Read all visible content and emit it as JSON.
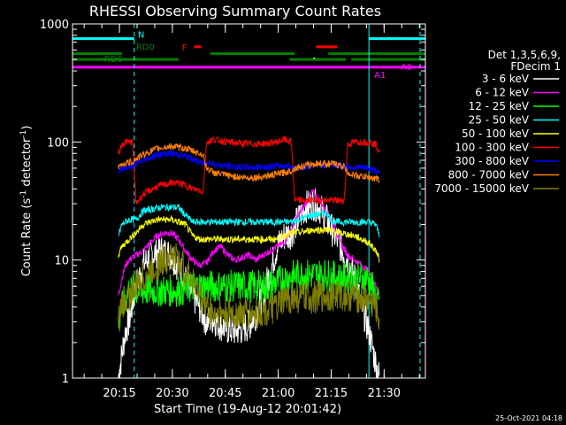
{
  "chart_data": {
    "type": "line",
    "title": "RHESSI Observing Summary Count Rates",
    "xlabel": "Start Time (19-Aug-12 20:01:42)",
    "ylabel_main": "Count Rate (s",
    "ylabel_sup1": "-1",
    "ylabel_mid": " detector",
    "ylabel_sup2": "-1",
    "ylabel_end": ")",
    "y_scale": "log",
    "ylim": [
      1,
      1000
    ],
    "xlim_minutes": [
      0,
      100
    ],
    "x_start_minutes_of_day": 1201.7,
    "y_ticks": [
      {
        "value": 1,
        "label": "1"
      },
      {
        "value": 10,
        "label": "10"
      },
      {
        "value": 100,
        "label": "100"
      },
      {
        "value": 1000,
        "label": "1000"
      }
    ],
    "x_ticks": [
      {
        "minute": 13.3,
        "label": "20:15"
      },
      {
        "minute": 28.3,
        "label": "20:30"
      },
      {
        "minute": 43.3,
        "label": "20:45"
      },
      {
        "minute": 58.3,
        "label": "21:00"
      },
      {
        "minute": 73.3,
        "label": "21:15"
      },
      {
        "minute": 88.3,
        "label": "21:30"
      }
    ],
    "legend": {
      "position": "right",
      "header": [
        "Det 1,3,5,6,9,",
        "FDecim 1"
      ],
      "entries": [
        {
          "label": "3 - 6 keV",
          "color": "#ffffff"
        },
        {
          "label": "6 - 12 keV",
          "color": "#ff00ff"
        },
        {
          "label": "12 - 25 keV",
          "color": "#00ff00"
        },
        {
          "label": "25 - 50 keV",
          "color": "#00ffff"
        },
        {
          "label": "50 - 100 keV",
          "color": "#ffff00"
        },
        {
          "label": "100 - 300 keV",
          "color": "#ff0000"
        },
        {
          "label": "300 - 800 keV",
          "color": "#0000ff"
        },
        {
          "label": "800 - 7000 keV",
          "color": "#ff8000"
        },
        {
          "label": "7000 - 15000 keV",
          "color": "#808000"
        }
      ]
    },
    "flag_bars": [
      {
        "label": "N",
        "color": "#00ffff",
        "y": 750,
        "segments": [
          [
            0,
            17.5
          ],
          [
            84,
            100
          ]
        ]
      },
      {
        "label": "F",
        "color": "#ff0000",
        "y": 640,
        "segments": [
          [
            34.5,
            36.5
          ],
          [
            69,
            75
          ]
        ]
      },
      {
        "label": "RD0",
        "color": "#008000",
        "y": 560,
        "segments": [
          [
            0,
            14
          ],
          [
            39,
            63
          ],
          [
            72.5,
            100
          ]
        ]
      },
      {
        "label": "RD6",
        "color": "#008000",
        "y": 500,
        "segments": [
          [
            0,
            30
          ],
          [
            61.5,
            77.5
          ],
          [
            79,
            100
          ]
        ]
      },
      {
        "label": "A1",
        "color": "#ff00ff",
        "y": 430,
        "segments": [
          [
            0,
            100
          ]
        ]
      }
    ],
    "flag_labels_extra": [
      {
        "text": "A0",
        "color": "#ff00ff"
      }
    ],
    "day_night": {
      "solid_lines": [
        0,
        84
      ],
      "dashed_lines": [
        17.5,
        98.5
      ],
      "color": "#00ffff"
    },
    "data_interval": [
      13.0,
      87.0
    ],
    "series": [
      {
        "name": "3 - 6 keV",
        "color": "#ffffff",
        "points": [
          [
            13,
            1.0
          ],
          [
            14,
            1.6
          ],
          [
            15,
            2.5
          ],
          [
            16,
            3.0
          ],
          [
            18,
            6
          ],
          [
            20,
            9
          ],
          [
            22,
            11
          ],
          [
            25,
            12
          ],
          [
            28,
            11
          ],
          [
            31,
            8
          ],
          [
            34,
            5
          ],
          [
            36,
            4
          ],
          [
            38,
            3.0
          ],
          [
            40,
            3.2
          ],
          [
            42,
            2.8
          ],
          [
            44,
            2.6
          ],
          [
            46,
            2.5
          ],
          [
            48,
            2.6
          ],
          [
            50,
            2.8
          ],
          [
            52,
            3.5
          ],
          [
            54,
            5
          ],
          [
            56,
            8
          ],
          [
            58,
            13
          ],
          [
            60,
            16
          ],
          [
            62,
            17
          ],
          [
            64,
            22
          ],
          [
            66,
            28
          ],
          [
            68,
            30
          ],
          [
            70,
            28
          ],
          [
            72,
            22
          ],
          [
            74,
            17
          ],
          [
            76,
            13
          ],
          [
            78,
            10
          ],
          [
            80,
            7
          ],
          [
            82,
            4
          ],
          [
            84,
            2.5
          ],
          [
            85,
            1.8
          ],
          [
            86,
            1.3
          ],
          [
            87,
            1.0
          ]
        ]
      },
      {
        "name": "6 - 12 keV",
        "color": "#ff00ff",
        "points": [
          [
            13,
            5
          ],
          [
            14,
            7
          ],
          [
            15,
            9
          ],
          [
            16,
            10
          ],
          [
            18,
            11
          ],
          [
            20,
            12
          ],
          [
            22,
            14
          ],
          [
            24,
            16
          ],
          [
            26,
            17
          ],
          [
            28,
            17
          ],
          [
            30,
            15
          ],
          [
            32,
            12
          ],
          [
            34,
            10
          ],
          [
            36,
            9
          ],
          [
            38,
            9.5
          ],
          [
            40,
            12
          ],
          [
            42,
            13
          ],
          [
            44,
            11
          ],
          [
            46,
            10
          ],
          [
            48,
            10.5
          ],
          [
            50,
            11
          ],
          [
            52,
            10
          ],
          [
            54,
            11
          ],
          [
            56,
            12
          ],
          [
            58,
            13
          ],
          [
            60,
            14
          ],
          [
            62,
            18
          ],
          [
            64,
            24
          ],
          [
            66,
            30
          ],
          [
            68,
            38
          ],
          [
            70,
            32
          ],
          [
            72,
            26
          ],
          [
            74,
            20
          ],
          [
            76,
            14
          ],
          [
            78,
            11
          ],
          [
            80,
            10
          ],
          [
            82,
            9
          ],
          [
            84,
            8
          ],
          [
            86,
            6
          ],
          [
            87,
            5
          ]
        ]
      },
      {
        "name": "12 - 25 keV",
        "color": "#00ff00",
        "points": [
          [
            13,
            3
          ],
          [
            14,
            4
          ],
          [
            16,
            5.5
          ],
          [
            20,
            5.5
          ],
          [
            25,
            5.5
          ],
          [
            30,
            5.5
          ],
          [
            35,
            6
          ],
          [
            40,
            6
          ],
          [
            45,
            6
          ],
          [
            50,
            6
          ],
          [
            55,
            6
          ],
          [
            58,
            6.5
          ],
          [
            60,
            7
          ],
          [
            64,
            7.5
          ],
          [
            68,
            7.5
          ],
          [
            72,
            7.5
          ],
          [
            76,
            7
          ],
          [
            80,
            7
          ],
          [
            84,
            7
          ],
          [
            87,
            4
          ]
        ]
      },
      {
        "name": "25 - 50 keV",
        "color": "#00ffff",
        "points": [
          [
            13,
            16
          ],
          [
            14,
            20
          ],
          [
            16,
            22
          ],
          [
            18,
            22
          ],
          [
            20,
            26
          ],
          [
            25,
            28
          ],
          [
            30,
            28
          ],
          [
            32,
            24
          ],
          [
            34,
            21
          ],
          [
            40,
            21
          ],
          [
            45,
            21
          ],
          [
            50,
            21
          ],
          [
            55,
            21
          ],
          [
            58,
            21
          ],
          [
            60,
            21
          ],
          [
            62,
            21
          ],
          [
            64,
            22
          ],
          [
            68,
            24
          ],
          [
            72,
            25
          ],
          [
            74,
            21
          ],
          [
            78,
            21
          ],
          [
            82,
            21
          ],
          [
            84,
            21
          ],
          [
            86,
            20
          ],
          [
            87,
            16
          ]
        ]
      },
      {
        "name": "50 - 100 keV",
        "color": "#ffff00",
        "points": [
          [
            13,
            11
          ],
          [
            14,
            13
          ],
          [
            16,
            15
          ],
          [
            18,
            17
          ],
          [
            20,
            20
          ],
          [
            24,
            22
          ],
          [
            28,
            22
          ],
          [
            32,
            20
          ],
          [
            34,
            16
          ],
          [
            36,
            15
          ],
          [
            40,
            15
          ],
          [
            45,
            15
          ],
          [
            50,
            15
          ],
          [
            55,
            15
          ],
          [
            58,
            15
          ],
          [
            60,
            16
          ],
          [
            62,
            17
          ],
          [
            64,
            17
          ],
          [
            68,
            18
          ],
          [
            72,
            18
          ],
          [
            76,
            17
          ],
          [
            80,
            16
          ],
          [
            84,
            14
          ],
          [
            86,
            12
          ],
          [
            87,
            10
          ]
        ]
      },
      {
        "name": "100 - 300 keV",
        "color": "#ff0000",
        "points": [
          [
            13,
            80
          ],
          [
            14,
            95
          ],
          [
            15,
            100
          ],
          [
            17,
            100
          ],
          [
            18,
            30
          ],
          [
            20,
            36
          ],
          [
            24,
            42
          ],
          [
            28,
            45
          ],
          [
            30,
            45
          ],
          [
            32,
            43
          ],
          [
            34,
            40
          ],
          [
            36,
            39
          ],
          [
            37,
            38
          ],
          [
            38,
            100
          ],
          [
            40,
            105
          ],
          [
            44,
            100
          ],
          [
            48,
            97
          ],
          [
            52,
            96
          ],
          [
            56,
            98
          ],
          [
            58,
            100
          ],
          [
            60,
            105
          ],
          [
            62,
            100
          ],
          [
            63,
            32
          ],
          [
            66,
            32
          ],
          [
            70,
            32
          ],
          [
            74,
            32
          ],
          [
            77,
            32
          ],
          [
            78,
            95
          ],
          [
            80,
            100
          ],
          [
            84,
            100
          ],
          [
            86,
            95
          ],
          [
            87,
            80
          ]
        ]
      },
      {
        "name": "300 - 800 keV",
        "color": "#0000ff",
        "points": [
          [
            13,
            55
          ],
          [
            14,
            60
          ],
          [
            17,
            62
          ],
          [
            18,
            65
          ],
          [
            20,
            70
          ],
          [
            24,
            78
          ],
          [
            28,
            80
          ],
          [
            32,
            76
          ],
          [
            35,
            70
          ],
          [
            37,
            65
          ],
          [
            38,
            68
          ],
          [
            40,
            65
          ],
          [
            44,
            62
          ],
          [
            48,
            61
          ],
          [
            52,
            61
          ],
          [
            56,
            62
          ],
          [
            60,
            63
          ],
          [
            62,
            62
          ],
          [
            63,
            60
          ],
          [
            66,
            62
          ],
          [
            70,
            64
          ],
          [
            74,
            64
          ],
          [
            77,
            62
          ],
          [
            78,
            62
          ],
          [
            80,
            61
          ],
          [
            84,
            60
          ],
          [
            87,
            55
          ]
        ]
      },
      {
        "name": "800 - 7000 keV",
        "color": "#ff8000",
        "points": [
          [
            13,
            60
          ],
          [
            14,
            65
          ],
          [
            17,
            68
          ],
          [
            18,
            72
          ],
          [
            20,
            78
          ],
          [
            24,
            88
          ],
          [
            28,
            92
          ],
          [
            32,
            88
          ],
          [
            35,
            82
          ],
          [
            37,
            78
          ],
          [
            38,
            60
          ],
          [
            40,
            55
          ],
          [
            44,
            52
          ],
          [
            48,
            50
          ],
          [
            52,
            50
          ],
          [
            56,
            52
          ],
          [
            60,
            55
          ],
          [
            62,
            57
          ],
          [
            63,
            60
          ],
          [
            66,
            63
          ],
          [
            70,
            66
          ],
          [
            74,
            65
          ],
          [
            77,
            62
          ],
          [
            78,
            55
          ],
          [
            80,
            52
          ],
          [
            84,
            50
          ],
          [
            87,
            48
          ]
        ]
      },
      {
        "name": "7000 - 15000 keV",
        "color": "#808000",
        "points": [
          [
            13,
            3
          ],
          [
            14,
            4
          ],
          [
            16,
            5
          ],
          [
            18,
            6
          ],
          [
            20,
            7
          ],
          [
            24,
            9
          ],
          [
            28,
            11
          ],
          [
            30,
            10
          ],
          [
            32,
            8
          ],
          [
            34,
            7
          ],
          [
            36,
            5
          ],
          [
            38,
            4
          ],
          [
            40,
            3.5
          ],
          [
            44,
            3.5
          ],
          [
            48,
            3.5
          ],
          [
            52,
            3.5
          ],
          [
            56,
            3.8
          ],
          [
            58,
            4
          ],
          [
            60,
            4.5
          ],
          [
            62,
            4.8
          ],
          [
            64,
            4.8
          ],
          [
            68,
            4.8
          ],
          [
            72,
            5
          ],
          [
            76,
            5
          ],
          [
            80,
            5
          ],
          [
            84,
            4.5
          ],
          [
            86,
            4
          ],
          [
            87,
            3
          ]
        ]
      }
    ]
  },
  "footer_date": "25-Oct-2021 04:18"
}
